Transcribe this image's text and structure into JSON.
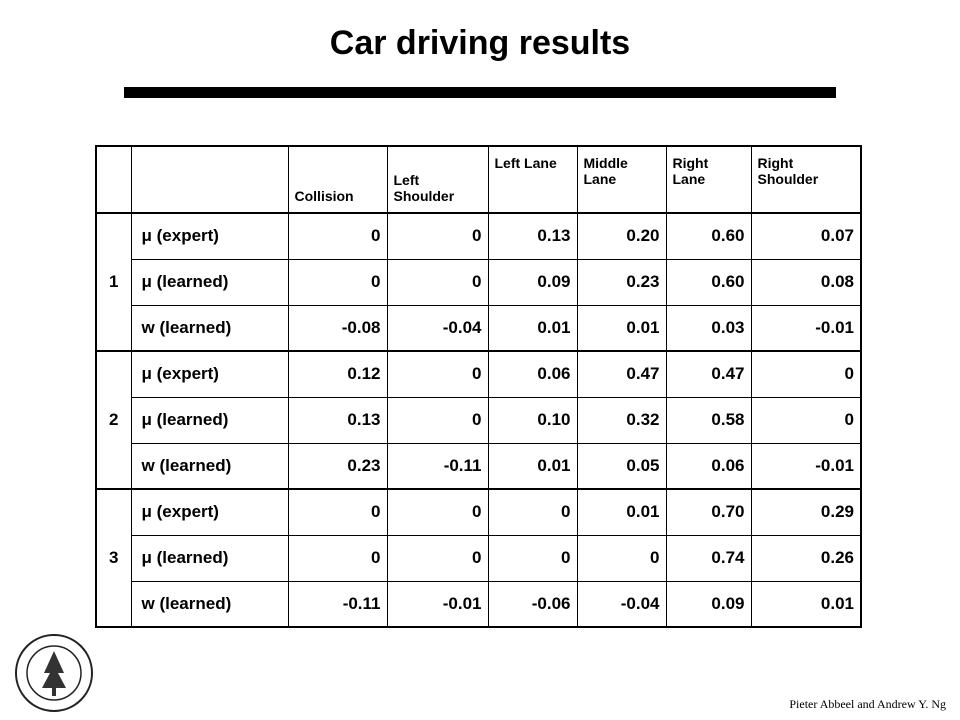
{
  "header": {
    "title": "Car driving results"
  },
  "table": {
    "columns": [
      "Collision",
      "Left Shoulder",
      "Left Lane",
      "Middle Lane",
      "Right Lane",
      "Right Shoulder"
    ],
    "groups": [
      {
        "label": "1",
        "rows": [
          {
            "label": "μ (expert)",
            "values": [
              "0",
              "0",
              "0.13",
              "0.20",
              "0.60",
              "0.07"
            ]
          },
          {
            "label": "μ (learned)",
            "values": [
              "0",
              "0",
              "0.09",
              "0.23",
              "0.60",
              "0.08"
            ]
          },
          {
            "label": "w (learned)",
            "values": [
              "-0.08",
              "-0.04",
              "0.01",
              "0.01",
              "0.03",
              "-0.01"
            ]
          }
        ]
      },
      {
        "label": "2",
        "rows": [
          {
            "label": "μ (expert)",
            "values": [
              "0.12",
              "0",
              "0.06",
              "0.47",
              "0.47",
              "0"
            ]
          },
          {
            "label": "μ (learned)",
            "values": [
              "0.13",
              "0",
              "0.10",
              "0.32",
              "0.58",
              "0"
            ]
          },
          {
            "label": "w (learned)",
            "values": [
              "0.23",
              "-0.11",
              "0.01",
              "0.05",
              "0.06",
              "-0.01"
            ]
          }
        ]
      },
      {
        "label": "3",
        "rows": [
          {
            "label": "μ (expert)",
            "values": [
              "0",
              "0",
              "0",
              "0.01",
              "0.70",
              "0.29"
            ]
          },
          {
            "label": "μ (learned)",
            "values": [
              "0",
              "0",
              "0",
              "0",
              "0.74",
              "0.26"
            ]
          },
          {
            "label": "w (learned)",
            "values": [
              "-0.11",
              "-0.01",
              "-0.06",
              "-0.04",
              "0.09",
              "0.01"
            ]
          }
        ]
      }
    ]
  },
  "footer": {
    "credit": "Pieter Abbeel and Andrew Y. Ng"
  }
}
